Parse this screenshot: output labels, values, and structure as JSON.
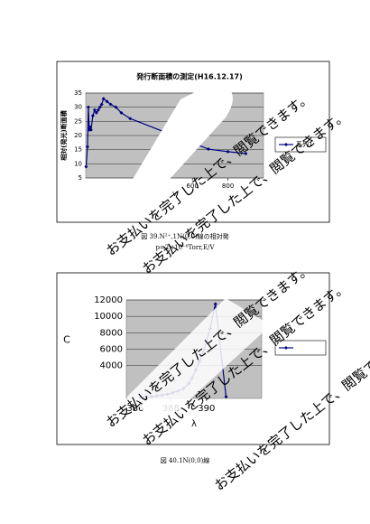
{
  "watermark": "お支払いを完了した上で、閲覧できます。",
  "captions": [
    "図 39.N²⁺,1N(0,0)線の相対発",
    "p=2×10⁻⁶Torr,E/V",
    "図 40.1N(0,0)線"
  ],
  "chart_data": [
    {
      "type": "line",
      "title": "発行断面積の測定(H16.12.17)",
      "x_label": "V",
      "y_label": "相対(発光)断面積",
      "series": [
        {
          "name": "系列1",
          "color": "#000080",
          "x": [
            2,
            10,
            15,
            20,
            25,
            30,
            40,
            50,
            60,
            70,
            80,
            90,
            100,
            120,
            140,
            170,
            200,
            250,
            690,
            800,
            900
          ],
          "values": [
            9,
            16,
            30,
            22,
            23,
            22,
            27,
            29,
            28,
            29,
            30,
            31,
            33,
            32,
            31,
            30,
            28,
            26,
            15.2,
            14.3,
            13.6
          ]
        }
      ],
      "xlim": [
        0,
        1000
      ],
      "ylim": [
        5,
        35
      ],
      "xticks": [
        400,
        600,
        800
      ],
      "yticks": [
        5,
        10,
        15,
        20,
        25,
        30,
        35
      ]
    },
    {
      "type": "line",
      "x_label": "λ",
      "y_label": "C",
      "series": [
        {
          "color": "#000080",
          "x": [
            386.3,
            386.6,
            386.9,
            387.2,
            387.5,
            387.8,
            388.1,
            388.4,
            388.7,
            389.0,
            389.2,
            389.4,
            389.6,
            389.8,
            390.0,
            390.2,
            390.5,
            391.1
          ],
          "values": [
            100,
            150,
            200,
            300,
            400,
            500,
            700,
            900,
            1200,
            1800,
            2500,
            3500,
            4500,
            5500,
            7000,
            8500,
            11500,
            200
          ]
        }
      ],
      "xlim": [
        385.5,
        393.1
      ],
      "ylim": [
        0,
        12000
      ],
      "xticks": [
        386,
        388,
        390
      ],
      "yticks": [
        4000,
        6000,
        8000,
        10000,
        12000
      ]
    }
  ]
}
